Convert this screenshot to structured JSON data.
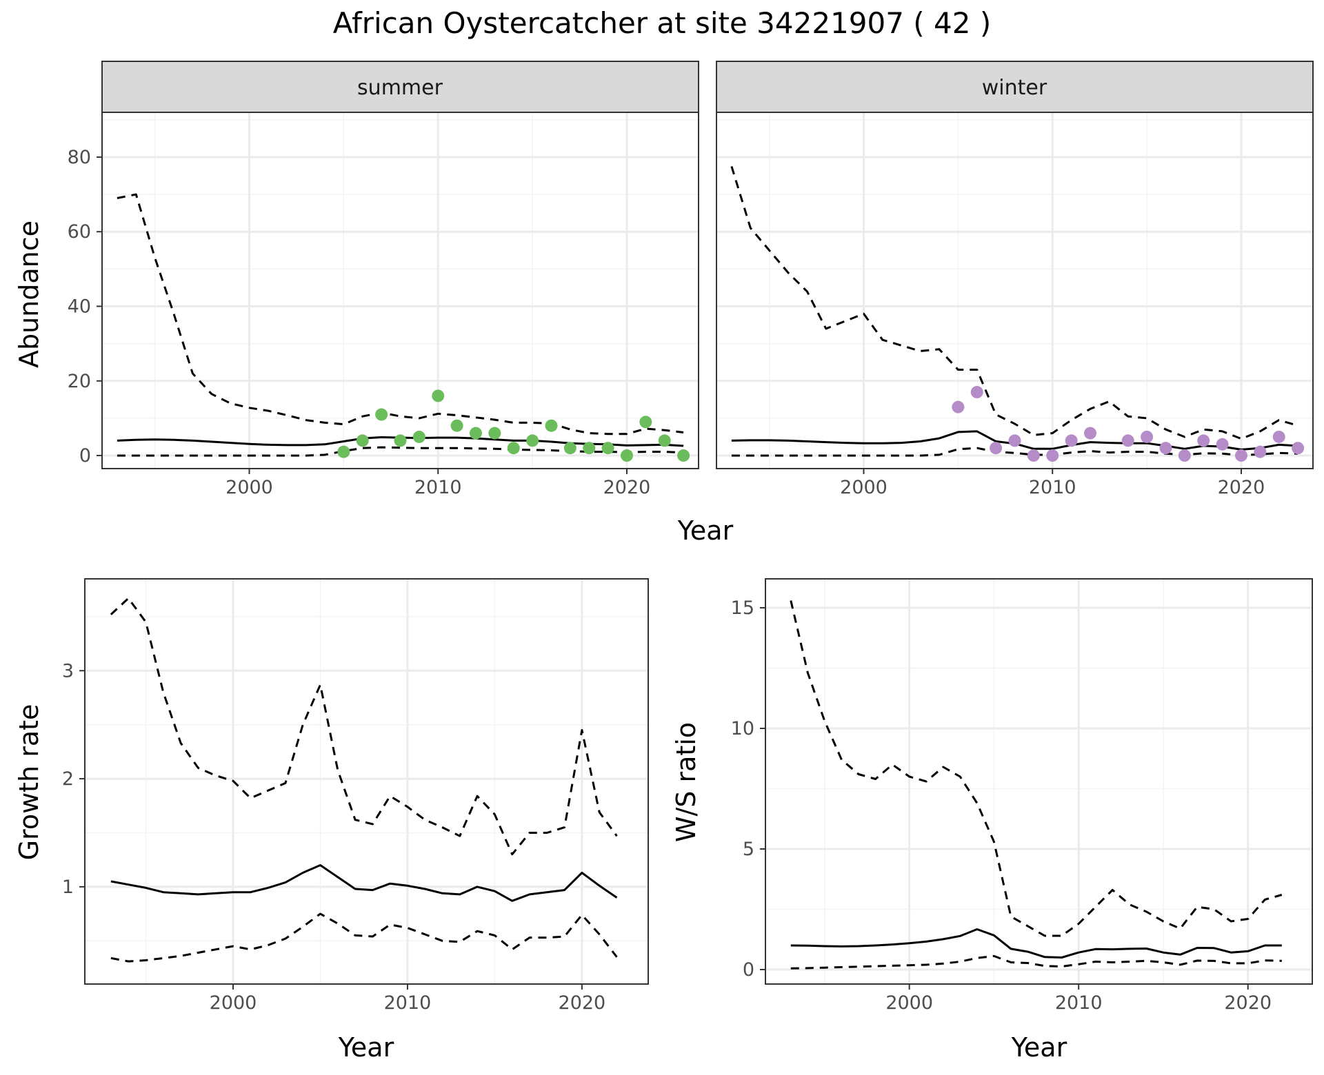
{
  "title": "African Oystercatcher at site 34221907 ( 42 )",
  "colors": {
    "summer_points": "#6abd5a",
    "winter_points": "#b58cc8",
    "lines": "#000000",
    "grid": "#ebebeb",
    "strip": "#d9d9d9"
  },
  "chart_data": [
    {
      "type": "line",
      "facet_strip": "summer",
      "xlabel": "Year",
      "ylabel": "Abundance",
      "xlim": [
        1992.2,
        2023.8
      ],
      "ylim": [
        -3.5,
        92
      ],
      "xticks": [
        2000,
        2010,
        2020
      ],
      "yticks": [
        0,
        20,
        40,
        60,
        80
      ],
      "grid": true,
      "series": [
        {
          "role": "estimate",
          "style": "solid",
          "x": [
            1993,
            1994,
            1995,
            1996,
            1997,
            1998,
            1999,
            2000,
            2001,
            2002,
            2003,
            2004,
            2005,
            2006,
            2007,
            2008,
            2009,
            2010,
            2011,
            2012,
            2013,
            2014,
            2015,
            2016,
            2017,
            2018,
            2019,
            2020,
            2021,
            2022,
            2023
          ],
          "y": [
            4,
            4.2,
            4.3,
            4.2,
            4,
            3.7,
            3.4,
            3.1,
            2.9,
            2.8,
            2.8,
            3.0,
            3.8,
            4.6,
            4.9,
            4.8,
            4.7,
            4.8,
            4.8,
            4.6,
            4.3,
            4.0,
            4.0,
            3.7,
            3.3,
            3.1,
            3.0,
            2.7,
            2.8,
            2.9,
            2.6
          ]
        },
        {
          "role": "upper",
          "style": "dashed",
          "x": [
            1993,
            1994,
            1995,
            1996,
            1997,
            1998,
            1999,
            2000,
            2001,
            2002,
            2003,
            2004,
            2005,
            2006,
            2007,
            2008,
            2009,
            2010,
            2011,
            2012,
            2013,
            2014,
            2015,
            2016,
            2017,
            2018,
            2019,
            2020,
            2021,
            2022,
            2023
          ],
          "y": [
            69,
            70,
            53,
            38,
            22,
            16.5,
            14,
            12.8,
            12,
            10.8,
            9.5,
            8.8,
            8.4,
            10.5,
            11.5,
            10.5,
            10.0,
            11.2,
            10.8,
            10.2,
            9.6,
            8.8,
            8.8,
            8.6,
            7.0,
            6.0,
            5.8,
            5.8,
            7.2,
            6.8,
            6.2
          ]
        },
        {
          "role": "lower",
          "style": "dashed",
          "x": [
            1993,
            1994,
            1995,
            1996,
            1997,
            1998,
            1999,
            2000,
            2001,
            2002,
            2003,
            2004,
            2005,
            2006,
            2007,
            2008,
            2009,
            2010,
            2011,
            2012,
            2013,
            2014,
            2015,
            2016,
            2017,
            2018,
            2019,
            2020,
            2021,
            2022,
            2023
          ],
          "y": [
            0,
            0,
            0,
            0,
            0,
            0,
            0,
            0,
            0,
            0,
            0,
            0.2,
            1.2,
            2.0,
            2.2,
            2.1,
            2.0,
            2.0,
            2.0,
            1.9,
            1.8,
            1.6,
            1.5,
            1.4,
            1.2,
            1.0,
            1.0,
            0.9,
            1.0,
            1.0,
            0.8
          ]
        }
      ],
      "points": {
        "x": [
          2005,
          2006,
          2007,
          2008,
          2009,
          2010,
          2011,
          2012,
          2013,
          2014,
          2015,
          2016,
          2017,
          2018,
          2019,
          2020,
          2021,
          2022,
          2023
        ],
        "y": [
          1,
          4,
          11,
          4,
          5,
          16,
          8,
          6,
          6,
          2,
          4,
          8,
          2,
          2,
          2,
          0,
          9,
          4,
          0
        ]
      }
    },
    {
      "type": "line",
      "facet_strip": "winter",
      "xlabel": "Year",
      "ylabel": "Abundance",
      "xlim": [
        1992.2,
        2023.8
      ],
      "ylim": [
        -3.5,
        92
      ],
      "xticks": [
        2000,
        2010,
        2020
      ],
      "yticks": [
        0,
        20,
        40,
        60,
        80
      ],
      "grid": true,
      "series": [
        {
          "role": "estimate",
          "style": "solid",
          "x": [
            1993,
            1994,
            1995,
            1996,
            1997,
            1998,
            1999,
            2000,
            2001,
            2002,
            2003,
            2004,
            2005,
            2006,
            2007,
            2008,
            2009,
            2010,
            2011,
            2012,
            2013,
            2014,
            2015,
            2016,
            2017,
            2018,
            2019,
            2020,
            2021,
            2022,
            2023
          ],
          "y": [
            4,
            4.1,
            4.1,
            4.0,
            3.8,
            3.6,
            3.4,
            3.3,
            3.3,
            3.4,
            3.8,
            4.6,
            6.3,
            6.5,
            3.8,
            3.2,
            1.8,
            1.8,
            2.8,
            3.6,
            3.4,
            3.3,
            3.3,
            2.6,
            1.8,
            2.6,
            2.4,
            1.6,
            2.0,
            2.9,
            2.6
          ]
        },
        {
          "role": "upper",
          "style": "dashed",
          "x": [
            1993,
            1994,
            1995,
            1996,
            1997,
            1998,
            1999,
            2000,
            2001,
            2002,
            2003,
            2004,
            2005,
            2006,
            2007,
            2008,
            2009,
            2010,
            2011,
            2012,
            2013,
            2014,
            2015,
            2016,
            2017,
            2018,
            2019,
            2020,
            2021,
            2022,
            2023
          ],
          "y": [
            77.5,
            61,
            55,
            49,
            44,
            34,
            36,
            38,
            31,
            29.5,
            28,
            28.5,
            23,
            23,
            11,
            8.5,
            5.5,
            6,
            9.5,
            12.5,
            14.5,
            10.5,
            10,
            7,
            5,
            7,
            6.5,
            4.5,
            6.5,
            9.5,
            8
          ]
        },
        {
          "role": "lower",
          "style": "dashed",
          "x": [
            1993,
            1994,
            1995,
            1996,
            1997,
            1998,
            1999,
            2000,
            2001,
            2002,
            2003,
            2004,
            2005,
            2006,
            2007,
            2008,
            2009,
            2010,
            2011,
            2012,
            2013,
            2014,
            2015,
            2016,
            2017,
            2018,
            2019,
            2020,
            2021,
            2022,
            2023
          ],
          "y": [
            0,
            0,
            0,
            0,
            0,
            0,
            0,
            0,
            0,
            0,
            0,
            0.2,
            1.7,
            2.0,
            1.0,
            0.7,
            0.2,
            0.2,
            0.8,
            1.2,
            0.8,
            1.0,
            1.0,
            0.5,
            0.2,
            0.6,
            0.5,
            0.1,
            0.3,
            0.7,
            0.5
          ]
        }
      ],
      "points": {
        "x": [
          2005,
          2006,
          2007,
          2008,
          2009,
          2010,
          2011,
          2012,
          2014,
          2015,
          2016,
          2017,
          2018,
          2019,
          2020,
          2021,
          2022,
          2023
        ],
        "y": [
          13,
          17,
          2,
          4,
          0,
          0,
          4,
          6,
          4,
          5,
          2,
          0,
          4,
          3,
          0,
          1,
          5,
          2
        ]
      }
    },
    {
      "type": "line",
      "xlabel": "Year",
      "ylabel": "Growth rate",
      "xlim": [
        1991.5,
        2023.8
      ],
      "ylim": [
        0.1,
        3.85
      ],
      "xticks": [
        2000,
        2010,
        2020
      ],
      "yticks": [
        1,
        2,
        3
      ],
      "grid": true,
      "series": [
        {
          "role": "estimate",
          "style": "solid",
          "x": [
            1993,
            1994,
            1995,
            1996,
            1997,
            1998,
            1999,
            2000,
            2001,
            2002,
            2003,
            2004,
            2005,
            2006,
            2007,
            2008,
            2009,
            2010,
            2011,
            2012,
            2013,
            2014,
            2015,
            2016,
            2017,
            2018,
            2019,
            2020,
            2021,
            2022
          ],
          "y": [
            1.05,
            1.02,
            0.99,
            0.95,
            0.94,
            0.93,
            0.94,
            0.95,
            0.95,
            0.99,
            1.04,
            1.13,
            1.2,
            1.09,
            0.98,
            0.97,
            1.03,
            1.01,
            0.98,
            0.94,
            0.93,
            1.0,
            0.96,
            0.87,
            0.93,
            0.95,
            0.97,
            1.13,
            1.01,
            0.9
          ]
        },
        {
          "role": "upper",
          "style": "dashed",
          "x": [
            1993,
            1994,
            1995,
            1996,
            1997,
            1998,
            1999,
            2000,
            2001,
            2002,
            2003,
            2004,
            2005,
            2006,
            2007,
            2008,
            2009,
            2010,
            2011,
            2012,
            2013,
            2014,
            2015,
            2016,
            2017,
            2018,
            2019,
            2020,
            2021,
            2022
          ],
          "y": [
            3.52,
            3.67,
            3.45,
            2.8,
            2.33,
            2.1,
            2.03,
            1.98,
            1.82,
            1.89,
            1.96,
            2.5,
            2.87,
            2.08,
            1.62,
            1.58,
            1.84,
            1.74,
            1.62,
            1.55,
            1.47,
            1.84,
            1.67,
            1.3,
            1.5,
            1.5,
            1.55,
            2.45,
            1.69,
            1.47
          ]
        },
        {
          "role": "lower",
          "style": "dashed",
          "x": [
            1993,
            1994,
            1995,
            1996,
            1997,
            1998,
            1999,
            2000,
            2001,
            2002,
            2003,
            2004,
            2005,
            2006,
            2007,
            2008,
            2009,
            2010,
            2011,
            2012,
            2013,
            2014,
            2015,
            2016,
            2017,
            2018,
            2019,
            2020,
            2021,
            2022
          ],
          "y": [
            0.34,
            0.31,
            0.32,
            0.34,
            0.36,
            0.39,
            0.42,
            0.45,
            0.42,
            0.46,
            0.52,
            0.63,
            0.75,
            0.66,
            0.55,
            0.54,
            0.65,
            0.62,
            0.56,
            0.5,
            0.49,
            0.59,
            0.55,
            0.42,
            0.53,
            0.53,
            0.54,
            0.74,
            0.56,
            0.35
          ]
        }
      ]
    },
    {
      "type": "line",
      "xlabel": "Year",
      "ylabel": "W/S ratio",
      "xlim": [
        1991.5,
        2023.8
      ],
      "ylim": [
        -0.6,
        16.2
      ],
      "xticks": [
        2000,
        2010,
        2020
      ],
      "yticks": [
        0,
        5,
        10,
        15
      ],
      "grid": true,
      "series": [
        {
          "role": "estimate",
          "style": "solid",
          "x": [
            1993,
            1994,
            1995,
            1996,
            1997,
            1998,
            1999,
            2000,
            2001,
            2002,
            2003,
            2004,
            2005,
            2006,
            2007,
            2008,
            2009,
            2010,
            2011,
            2012,
            2013,
            2014,
            2015,
            2016,
            2017,
            2018,
            2019,
            2020,
            2021,
            2022
          ],
          "y": [
            1.0,
            0.99,
            0.97,
            0.96,
            0.97,
            1.0,
            1.04,
            1.09,
            1.16,
            1.26,
            1.39,
            1.67,
            1.42,
            0.86,
            0.74,
            0.52,
            0.5,
            0.71,
            0.85,
            0.84,
            0.86,
            0.87,
            0.71,
            0.62,
            0.9,
            0.89,
            0.71,
            0.76,
            1.0,
            1.0
          ]
        },
        {
          "role": "upper",
          "style": "dashed",
          "x": [
            1993,
            1994,
            1995,
            1996,
            1997,
            1998,
            1999,
            2000,
            2001,
            2002,
            2003,
            2004,
            2005,
            2006,
            2007,
            2008,
            2009,
            2010,
            2011,
            2012,
            2013,
            2014,
            2015,
            2016,
            2017,
            2018,
            2019,
            2020,
            2021,
            2022
          ],
          "y": [
            15.3,
            12.3,
            10.3,
            8.7,
            8.1,
            7.9,
            8.5,
            8.0,
            7.8,
            8.4,
            8.0,
            6.9,
            5.3,
            2.2,
            1.8,
            1.4,
            1.4,
            1.9,
            2.6,
            3.3,
            2.7,
            2.4,
            2.0,
            1.7,
            2.6,
            2.5,
            2.0,
            2.1,
            2.9,
            3.1
          ]
        },
        {
          "role": "lower",
          "style": "dashed",
          "x": [
            1993,
            1994,
            1995,
            1996,
            1997,
            1998,
            1999,
            2000,
            2001,
            2002,
            2003,
            2004,
            2005,
            2006,
            2007,
            2008,
            2009,
            2010,
            2011,
            2012,
            2013,
            2014,
            2015,
            2016,
            2017,
            2018,
            2019,
            2020,
            2021,
            2022
          ],
          "y": [
            0.05,
            0.06,
            0.08,
            0.1,
            0.12,
            0.14,
            0.16,
            0.18,
            0.2,
            0.25,
            0.33,
            0.48,
            0.56,
            0.3,
            0.27,
            0.15,
            0.13,
            0.22,
            0.33,
            0.3,
            0.33,
            0.36,
            0.3,
            0.2,
            0.37,
            0.36,
            0.26,
            0.26,
            0.38,
            0.36
          ]
        }
      ]
    }
  ]
}
